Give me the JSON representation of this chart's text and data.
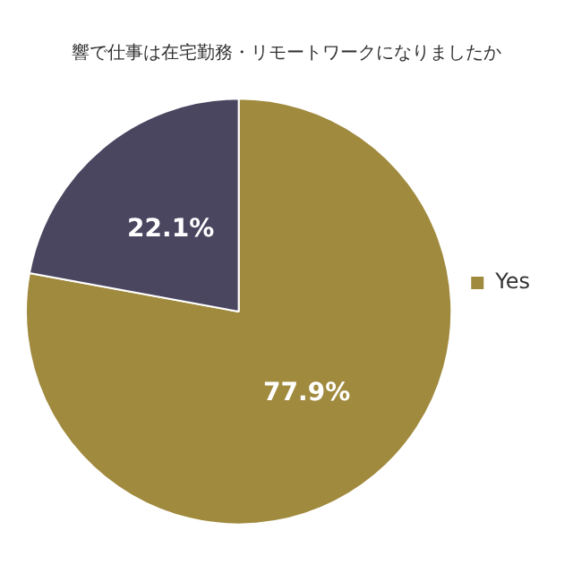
{
  "chart_data": {
    "type": "pie",
    "title": "響で仕事は在宅勤務・リモートワークになりましたか",
    "categories": [
      "Yes",
      null
    ],
    "values": [
      77.9,
      22.1
    ],
    "colors": [
      "#a08a3e",
      "#4b4660"
    ],
    "legend": "right",
    "value_labels": [
      "77.9%",
      "22.1%"
    ]
  }
}
